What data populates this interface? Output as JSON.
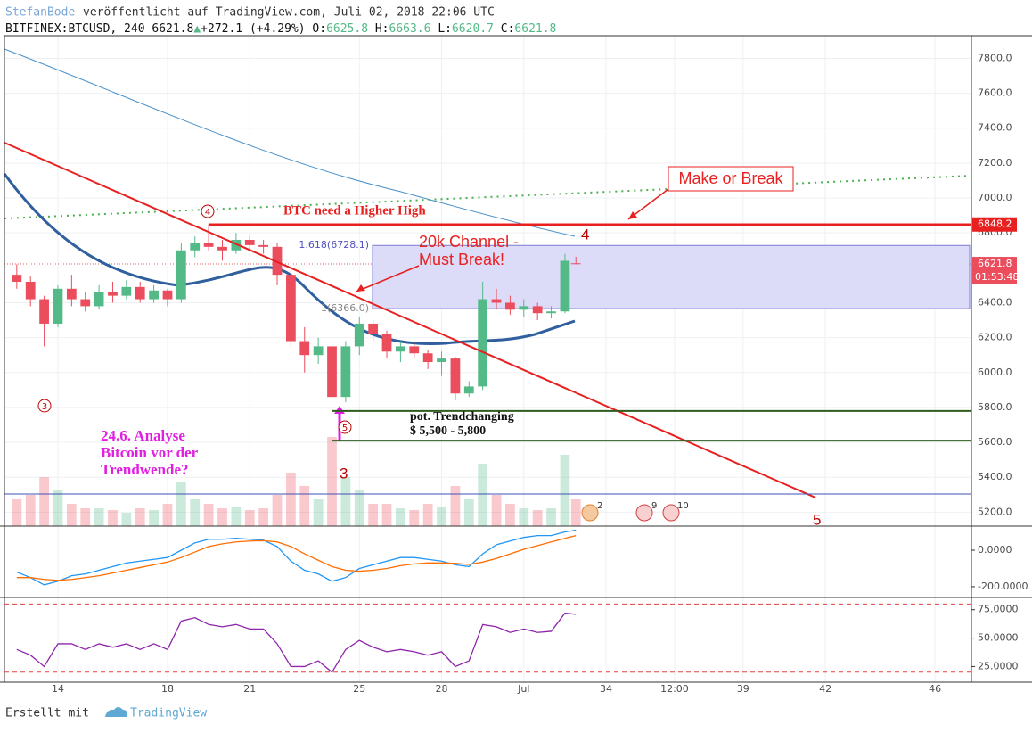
{
  "header": {
    "author": "StefanBode",
    "published": "veröffentlicht auf TradingView.com, Juli 02, 2018 22:06 UTC",
    "symbol": "BITFINEX:BTCUSD, 240",
    "last": "6621.8",
    "change": "+272.1 (+4.29%)",
    "ohlc": [
      [
        "O:",
        "6625.8"
      ],
      [
        "H:",
        "6663.6"
      ],
      [
        "L:",
        "6620.7"
      ],
      [
        "C:",
        "6621.8"
      ]
    ]
  },
  "chart_data": {
    "type": "candlestick",
    "x": [
      12.5,
      13,
      13.5,
      14,
      14.5,
      15,
      15.5,
      16,
      16.5,
      17,
      17.5,
      18,
      18.5,
      19,
      19.5,
      20,
      20.5,
      21,
      21.5,
      22,
      22.5,
      23,
      23.5,
      24,
      24.5,
      25,
      25.5,
      26,
      26.5,
      27,
      27.5,
      28,
      28.5,
      29,
      29.5,
      30,
      30.5,
      31,
      31.5,
      32,
      32.5,
      32.9
    ],
    "open": [
      6560,
      6520,
      6420,
      6280,
      6480,
      6420,
      6380,
      6460,
      6440,
      6490,
      6420,
      6470,
      6420,
      6700,
      6740,
      6720,
      6700,
      6760,
      6730,
      6720,
      6560,
      6180,
      6100,
      6150,
      5860,
      6150,
      6280,
      6220,
      6120,
      6150,
      6110,
      6060,
      6080,
      5880,
      5920,
      6420,
      6400,
      6360,
      6380,
      6340,
      6350,
      6625.8
    ],
    "high": [
      6620,
      6550,
      6440,
      6500,
      6560,
      6460,
      6500,
      6520,
      6530,
      6520,
      6500,
      6480,
      6740,
      6780,
      6850,
      6760,
      6800,
      6790,
      6760,
      6740,
      6580,
      6260,
      6200,
      6180,
      6180,
      6320,
      6300,
      6240,
      6180,
      6170,
      6130,
      6120,
      6090,
      5950,
      6520,
      6480,
      6440,
      6420,
      6400,
      6380,
      6680,
      6663.6
    ],
    "low": [
      6480,
      6380,
      6150,
      6260,
      6380,
      6350,
      6360,
      6400,
      6420,
      6400,
      6400,
      6380,
      6400,
      6660,
      6700,
      6640,
      6680,
      6700,
      6680,
      6500,
      6150,
      6000,
      6050,
      5780,
      5830,
      6100,
      6180,
      6080,
      6060,
      6080,
      6020,
      5980,
      5840,
      5860,
      5900,
      6360,
      6330,
      6320,
      6300,
      6310,
      6340,
      6620.7
    ],
    "close": [
      6520,
      6420,
      6280,
      6480,
      6420,
      6380,
      6460,
      6440,
      6490,
      6420,
      6470,
      6420,
      6700,
      6740,
      6720,
      6700,
      6760,
      6730,
      6720,
      6560,
      6180,
      6100,
      6150,
      5860,
      6150,
      6280,
      6220,
      6120,
      6150,
      6110,
      6060,
      6080,
      5880,
      5920,
      6420,
      6400,
      6360,
      6380,
      6340,
      6350,
      6640,
      6621.8
    ],
    "volume": [
      30,
      35,
      55,
      40,
      25,
      20,
      20,
      18,
      15,
      20,
      18,
      25,
      50,
      30,
      25,
      20,
      22,
      18,
      20,
      35,
      60,
      45,
      30,
      100,
      55,
      40,
      25,
      25,
      20,
      18,
      25,
      22,
      45,
      30,
      70,
      35,
      25,
      20,
      18,
      20,
      80,
      30
    ],
    "up_color": "#53b987",
    "down_color": "#eb4d5c",
    "xlim": [
      12.05,
      47.33
    ],
    "xticks": [
      14,
      18,
      21,
      25,
      28,
      {
        "value": 31,
        "label": "Jul"
      },
      34,
      {
        "value": 36.5,
        "label": "12:00"
      },
      39,
      42,
      46
    ],
    "ylim": [
      5120,
      7930
    ],
    "yticks": [
      {
        "value": 5200,
        "label": "5200.0"
      },
      {
        "value": 5400,
        "label": "5400.0"
      },
      {
        "value": 5600,
        "label": "5600.0"
      },
      {
        "value": 5800,
        "label": "5800.0"
      },
      {
        "value": 6000,
        "label": "6000.0"
      },
      {
        "value": 6200,
        "label": "6200.0"
      },
      {
        "value": 6400,
        "label": "6400.0"
      },
      {
        "value": 6600,
        "label": "6600.0"
      },
      {
        "value": 6800,
        "label": "6800.0"
      },
      {
        "value": 7000,
        "label": "7000.0"
      },
      {
        "value": 7200,
        "label": "7200.0"
      },
      {
        "value": 7400,
        "label": "7400.0"
      },
      {
        "value": 7600,
        "label": "7600.0"
      },
      {
        "value": 7800,
        "label": "7800.0"
      }
    ],
    "grid": true,
    "price_line": {
      "value": 6621.8,
      "label": "6621.8",
      "countdown": "01:53:48"
    },
    "level": {
      "value": 6848.2,
      "label": "6848.2"
    },
    "fib": {
      "top": 6728.1,
      "top_label": "1.618(6728.1)",
      "bottom": 6366.0,
      "bottom_label": "1(6366.0)"
    },
    "support": [
      5780,
      5610
    ],
    "macd": {
      "values": [
        -120,
        -150,
        -190,
        -170,
        -140,
        -130,
        -110,
        -90,
        -70,
        -60,
        -50,
        -40,
        0,
        40,
        60,
        60,
        65,
        60,
        55,
        20,
        -60,
        -110,
        -130,
        -170,
        -150,
        -100,
        -80,
        -60,
        -40,
        -40,
        -50,
        -60,
        -80,
        -90,
        -20,
        30,
        50,
        70,
        80,
        80,
        100,
        110
      ],
      "signal": [
        -150,
        -150,
        -160,
        -165,
        -160,
        -150,
        -140,
        -125,
        -110,
        -95,
        -80,
        -65,
        -40,
        -10,
        20,
        35,
        45,
        50,
        52,
        45,
        20,
        -20,
        -55,
        -90,
        -110,
        -115,
        -110,
        -100,
        -85,
        -75,
        -70,
        -70,
        -72,
        -78,
        -65,
        -45,
        -20,
        5,
        25,
        45,
        65,
        80
      ],
      "ylim": [
        -254,
        127
      ],
      "yticks": [
        {
          "value": 0,
          "label": "0.0000"
        },
        {
          "value": -200,
          "label": "-200.0000"
        }
      ],
      "color": "#2196f3",
      "signal_color": "#ff6d00"
    },
    "rsi": {
      "values": [
        40,
        35,
        25,
        45,
        45,
        40,
        45,
        42,
        45,
        40,
        45,
        40,
        65,
        68,
        62,
        60,
        62,
        58,
        58,
        45,
        25,
        25,
        30,
        20,
        40,
        48,
        42,
        38,
        40,
        38,
        35,
        38,
        25,
        30,
        62,
        60,
        55,
        58,
        55,
        56,
        72,
        71
      ],
      "ylim": [
        12,
        85
      ],
      "yticks": [
        {
          "value": 25,
          "label": "25.0000"
        },
        {
          "value": 50,
          "label": "50.0000"
        },
        {
          "value": 75,
          "label": "75.0000"
        }
      ],
      "bands": [
        20,
        80
      ],
      "color": "#8e24aa"
    }
  },
  "annotations": {
    "higher_high": "BTC need a Higher High",
    "make_or_break": "Make or Break",
    "channel": [
      "20k Channel -",
      "Must Break!"
    ],
    "trend": [
      "pot. Trendchanging",
      "$ 5,500 - 5,800"
    ],
    "analysis": [
      "24.6. Analyse",
      "Bitcoin vor der",
      "Trendwende?"
    ],
    "waves": [
      "3",
      "4",
      "5"
    ],
    "circled": [
      "4",
      "3",
      "5"
    ],
    "events": [
      "2",
      "9",
      "10"
    ]
  },
  "footer": {
    "created": "Erstellt mit",
    "brand": "TradingView"
  }
}
